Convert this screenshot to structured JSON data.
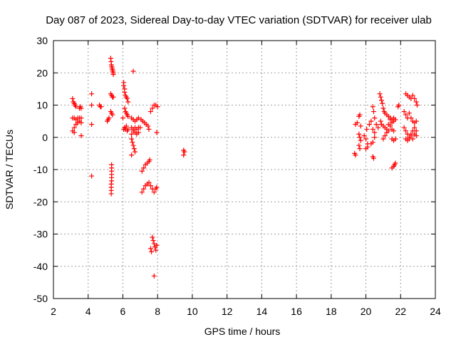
{
  "chart_data": {
    "type": "scatter",
    "title": "Day 087 of 2023, Sidereal Day-to-day VTEC variation (SDTVAR) for receiver ulab",
    "xlabel": "GPS time / hours",
    "ylabel": "SDTVAR / TECUs",
    "xlim": [
      2,
      24
    ],
    "ylim": [
      -50,
      30
    ],
    "xticks": [
      2,
      4,
      6,
      8,
      10,
      12,
      14,
      16,
      18,
      20,
      22,
      24
    ],
    "yticks": [
      -50,
      -40,
      -30,
      -20,
      -10,
      0,
      10,
      20,
      30
    ],
    "grid": true,
    "marker": "+",
    "color": "#ff0000",
    "series": [
      {
        "name": "SDTVAR",
        "points": [
          [
            3.1,
            12
          ],
          [
            3.15,
            11
          ],
          [
            3.2,
            10.5
          ],
          [
            3.25,
            10
          ],
          [
            3.3,
            9.5
          ],
          [
            3.1,
            6
          ],
          [
            3.2,
            6
          ],
          [
            3.3,
            5.5
          ],
          [
            3.4,
            6
          ],
          [
            3.5,
            6
          ],
          [
            3.6,
            6
          ],
          [
            3.1,
            2
          ],
          [
            3.2,
            3
          ],
          [
            3.3,
            4
          ],
          [
            3.4,
            4.5
          ],
          [
            3.5,
            5
          ],
          [
            3.6,
            4.5
          ],
          [
            3.2,
            1.5
          ],
          [
            3.5,
            9
          ],
          [
            3.55,
            9.5
          ],
          [
            3.6,
            9
          ],
          [
            3.6,
            0.5
          ],
          [
            4.2,
            13.5
          ],
          [
            4.2,
            10
          ],
          [
            4.2,
            4
          ],
          [
            4.2,
            -12
          ],
          [
            4.65,
            10
          ],
          [
            4.7,
            9.5
          ],
          [
            4.75,
            9.5
          ],
          [
            5.1,
            5
          ],
          [
            5.15,
            5.5
          ],
          [
            5.2,
            6
          ],
          [
            5.3,
            24.5
          ],
          [
            5.32,
            23.5
          ],
          [
            5.34,
            22.5
          ],
          [
            5.36,
            22
          ],
          [
            5.38,
            21.5
          ],
          [
            5.4,
            21
          ],
          [
            5.42,
            20.5
          ],
          [
            5.45,
            20
          ],
          [
            5.45,
            19.5
          ],
          [
            5.3,
            13.5
          ],
          [
            5.35,
            13
          ],
          [
            5.4,
            12.5
          ],
          [
            5.45,
            12.5
          ],
          [
            5.3,
            8
          ],
          [
            5.35,
            7.5
          ],
          [
            5.4,
            7
          ],
          [
            5.35,
            -8.5
          ],
          [
            5.35,
            -9.5
          ],
          [
            5.35,
            -10.5
          ],
          [
            5.35,
            -11.5
          ],
          [
            5.35,
            -12.5
          ],
          [
            5.35,
            -13.5
          ],
          [
            5.33,
            -14.5
          ],
          [
            5.33,
            -15.5
          ],
          [
            5.33,
            -16.5
          ],
          [
            5.33,
            -17.5
          ],
          [
            6.05,
            17
          ],
          [
            6.05,
            16
          ],
          [
            6.1,
            15
          ],
          [
            6.1,
            14
          ],
          [
            6.15,
            13
          ],
          [
            6.2,
            12.5
          ],
          [
            6.25,
            12
          ],
          [
            6.3,
            11
          ],
          [
            6.1,
            9
          ],
          [
            6.15,
            8
          ],
          [
            6.2,
            7.5
          ],
          [
            6.25,
            7
          ],
          [
            6.3,
            6.5
          ],
          [
            6.0,
            6
          ],
          [
            6.05,
            2.5
          ],
          [
            6.1,
            3
          ],
          [
            6.15,
            2.5
          ],
          [
            6.2,
            3.5
          ],
          [
            6.25,
            2
          ],
          [
            6.3,
            2.5
          ],
          [
            6.6,
            20.5
          ],
          [
            6.5,
            6
          ],
          [
            6.6,
            5.5
          ],
          [
            6.7,
            5
          ],
          [
            6.8,
            5.5
          ],
          [
            6.9,
            6
          ],
          [
            6.5,
            3
          ],
          [
            6.6,
            2.5
          ],
          [
            6.7,
            3
          ],
          [
            6.8,
            2.5
          ],
          [
            6.9,
            3
          ],
          [
            7.0,
            3
          ],
          [
            6.5,
            1
          ],
          [
            6.6,
            2
          ],
          [
            6.7,
            1.5
          ],
          [
            6.8,
            1
          ],
          [
            6.9,
            1.5
          ],
          [
            6.5,
            -0.5
          ],
          [
            6.55,
            -1.5
          ],
          [
            6.6,
            -2.5
          ],
          [
            6.65,
            -3.5
          ],
          [
            6.7,
            -4.5
          ],
          [
            6.5,
            -5.5
          ],
          [
            7.05,
            5.5
          ],
          [
            7.15,
            5
          ],
          [
            7.25,
            4.5
          ],
          [
            7.35,
            4
          ],
          [
            7.45,
            3.5
          ],
          [
            7.5,
            2.5
          ],
          [
            7.1,
            -10.5
          ],
          [
            7.2,
            -9.5
          ],
          [
            7.3,
            -8.5
          ],
          [
            7.4,
            -8
          ],
          [
            7.5,
            -7.5
          ],
          [
            7.55,
            -7
          ],
          [
            7.1,
            -17
          ],
          [
            7.2,
            -16
          ],
          [
            7.3,
            -15
          ],
          [
            7.4,
            -14.5
          ],
          [
            7.5,
            -14
          ],
          [
            7.6,
            -15
          ],
          [
            7.7,
            -16
          ],
          [
            7.8,
            -17
          ],
          [
            7.9,
            -16
          ],
          [
            7.95,
            -15.5
          ],
          [
            7.6,
            8
          ],
          [
            7.7,
            9
          ],
          [
            7.8,
            10
          ],
          [
            7.9,
            10
          ],
          [
            8.0,
            9.5
          ],
          [
            7.95,
            1.5
          ],
          [
            7.7,
            -31
          ],
          [
            7.75,
            -32
          ],
          [
            7.8,
            -33
          ],
          [
            7.85,
            -34
          ],
          [
            7.9,
            -35
          ],
          [
            7.95,
            -33.5
          ],
          [
            7.6,
            -34.5
          ],
          [
            7.65,
            -35.5
          ],
          [
            7.8,
            -43
          ],
          [
            9.5,
            -4
          ],
          [
            9.55,
            -4.5
          ],
          [
            9.5,
            -5.5
          ],
          [
            19.4,
            4
          ],
          [
            19.5,
            4.5
          ],
          [
            19.6,
            6.5
          ],
          [
            19.65,
            7
          ],
          [
            19.7,
            3.5
          ],
          [
            19.6,
            1
          ],
          [
            19.65,
            0
          ],
          [
            19.7,
            -1
          ],
          [
            19.6,
            -2.5
          ],
          [
            19.65,
            -3.5
          ],
          [
            19.4,
            -5.5
          ],
          [
            19.35,
            -5
          ],
          [
            19.9,
            0.5
          ],
          [
            20.0,
            -0.5
          ],
          [
            20.05,
            2.5
          ],
          [
            20.1,
            -2
          ],
          [
            20.0,
            -3.5
          ],
          [
            20.1,
            -3
          ],
          [
            20.2,
            4
          ],
          [
            20.3,
            5
          ],
          [
            20.4,
            -6
          ],
          [
            20.45,
            -6.5
          ],
          [
            20.4,
            9.5
          ],
          [
            20.45,
            8
          ],
          [
            20.5,
            6
          ],
          [
            20.6,
            4
          ],
          [
            20.7,
            3
          ],
          [
            20.4,
            2.5
          ],
          [
            20.5,
            1.5
          ],
          [
            20.3,
            -2
          ],
          [
            20.4,
            -1.5
          ],
          [
            20.5,
            0
          ],
          [
            20.8,
            13.5
          ],
          [
            20.85,
            12.5
          ],
          [
            20.9,
            11.5
          ],
          [
            20.95,
            10.5
          ],
          [
            21.0,
            9
          ],
          [
            21.05,
            8
          ],
          [
            21.1,
            7.5
          ],
          [
            21.2,
            7
          ],
          [
            21.3,
            6.5
          ],
          [
            21.4,
            6
          ],
          [
            21.5,
            5.5
          ],
          [
            21.6,
            5
          ],
          [
            20.85,
            5
          ],
          [
            20.9,
            4
          ],
          [
            21.0,
            3.5
          ],
          [
            21.1,
            3
          ],
          [
            21.2,
            2.5
          ],
          [
            21.3,
            4
          ],
          [
            21.4,
            3.5
          ],
          [
            21.5,
            2.5
          ],
          [
            21.6,
            2
          ],
          [
            21.0,
            -0.5
          ],
          [
            21.1,
            0.5
          ],
          [
            21.2,
            1.5
          ],
          [
            21.3,
            2
          ],
          [
            21.5,
            -0.5
          ],
          [
            21.6,
            -1
          ],
          [
            21.7,
            -0.5
          ],
          [
            21.4,
            5.5
          ],
          [
            21.5,
            4.5
          ],
          [
            21.6,
            6
          ],
          [
            21.7,
            5.5
          ],
          [
            21.5,
            -9.5
          ],
          [
            21.6,
            -9
          ],
          [
            21.65,
            -8.5
          ],
          [
            21.7,
            -8
          ],
          [
            21.85,
            9.5
          ],
          [
            21.9,
            10
          ],
          [
            22.2,
            8
          ],
          [
            22.3,
            7
          ],
          [
            22.4,
            6
          ],
          [
            22.5,
            7.5
          ],
          [
            22.6,
            6
          ],
          [
            22.7,
            5
          ],
          [
            22.8,
            4.5
          ],
          [
            22.9,
            5
          ],
          [
            22.3,
            13.5
          ],
          [
            22.4,
            13
          ],
          [
            22.5,
            12.5
          ],
          [
            22.6,
            12
          ],
          [
            22.7,
            13
          ],
          [
            22.8,
            12
          ],
          [
            22.9,
            11
          ],
          [
            22.95,
            10
          ],
          [
            22.2,
            3
          ],
          [
            22.3,
            2
          ],
          [
            22.4,
            1
          ],
          [
            22.5,
            0
          ],
          [
            22.6,
            1
          ],
          [
            22.7,
            2
          ],
          [
            22.8,
            3
          ],
          [
            22.9,
            2
          ],
          [
            22.3,
            -0.5
          ],
          [
            22.4,
            -1
          ],
          [
            22.5,
            -0.5
          ],
          [
            22.6,
            0.5
          ],
          [
            22.7,
            -0.5
          ],
          [
            22.8,
            1
          ],
          [
            22.9,
            0.5
          ]
        ]
      }
    ]
  }
}
